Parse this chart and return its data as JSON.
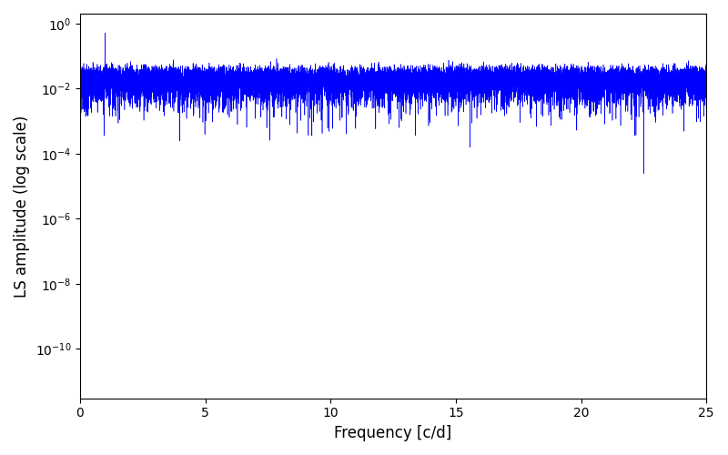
{
  "xlabel": "Frequency [c/d]",
  "ylabel": "LS amplitude (log scale)",
  "xlim": [
    0,
    25
  ],
  "ylim": [
    3e-12,
    2.0
  ],
  "line_color": "blue",
  "line_width": 0.4,
  "background_color": "#ffffff",
  "seed": 12345,
  "n_points": 20000,
  "freq_max": 25.0,
  "yticks": [
    1e-10,
    1e-08,
    1e-06,
    0.0001,
    0.01,
    1.0
  ]
}
